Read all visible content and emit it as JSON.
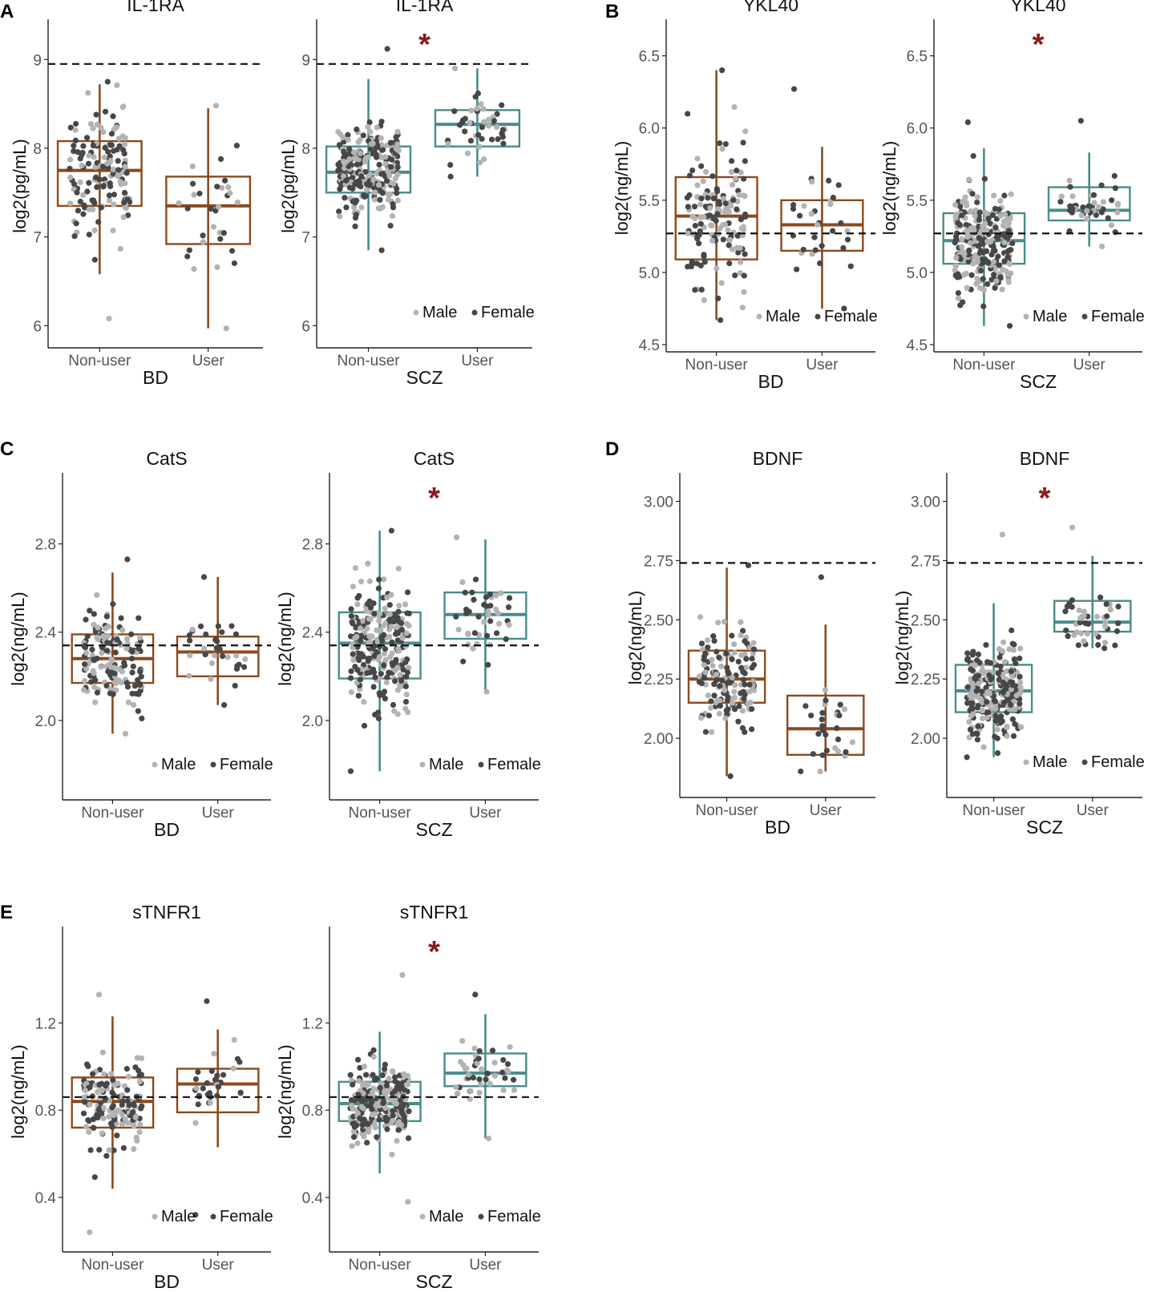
{
  "figure": {
    "panel_labels": [
      "A",
      "B",
      "C",
      "D",
      "E"
    ],
    "legend": {
      "male": "Male",
      "female": "Female"
    },
    "colors": {
      "bd": "#8B4A1E",
      "scz": "#4A8C8C",
      "male_dot": "#b3b3b3",
      "female_dot": "#474747",
      "star": "#8B1A1A",
      "refline": "#111111"
    },
    "significance_marker": "*"
  },
  "chart_data": [
    {
      "type": "box",
      "panel": "A",
      "title": "IL-1RA",
      "xlabel": "BD",
      "ylabel": "log2(pg/mL)",
      "categories": [
        "Non-user",
        "User"
      ],
      "ylim": [
        5.75,
        9.4
      ],
      "yticks": [
        6,
        7,
        8,
        9
      ],
      "ytick_labels": [
        "6",
        "7",
        "8",
        "9"
      ],
      "reference_line": 8.95,
      "significant": false,
      "legend": false,
      "color": "bd",
      "boxes": [
        {
          "q1": 7.35,
          "median": 7.75,
          "q3": 8.08,
          "wlo": 6.58,
          "whi": 8.72,
          "dmin": 6.08,
          "dmax": 8.75,
          "n": 150
        },
        {
          "q1": 6.92,
          "median": 7.35,
          "q3": 7.68,
          "wlo": 5.97,
          "whi": 8.45,
          "dmin": 5.97,
          "dmax": 8.48,
          "n": 32
        }
      ]
    },
    {
      "type": "box",
      "panel": "A",
      "title": "IL-1RA",
      "xlabel": "SCZ",
      "ylabel": "log2(pg/mL)",
      "categories": [
        "Non-user",
        "User"
      ],
      "ylim": [
        5.75,
        9.4
      ],
      "yticks": [
        6,
        7,
        8,
        9
      ],
      "ytick_labels": [
        "6",
        "7",
        "8",
        "9"
      ],
      "reference_line": 8.95,
      "significant": true,
      "legend": true,
      "color": "scz",
      "boxes": [
        {
          "q1": 7.5,
          "median": 7.73,
          "q3": 8.02,
          "wlo": 6.85,
          "whi": 8.78,
          "dmin": 6.85,
          "dmax": 9.12,
          "n": 260
        },
        {
          "q1": 8.02,
          "median": 8.27,
          "q3": 8.43,
          "wlo": 7.68,
          "whi": 8.9,
          "dmin": 7.68,
          "dmax": 8.9,
          "n": 45
        }
      ]
    },
    {
      "type": "box",
      "panel": "B",
      "title": "YKL40",
      "xlabel": "BD",
      "ylabel": "log2(ng/mL)",
      "categories": [
        "Non-user",
        "User"
      ],
      "ylim": [
        4.45,
        6.72
      ],
      "yticks": [
        4.5,
        5.0,
        5.5,
        6.0,
        6.5
      ],
      "ytick_labels": [
        "4.5",
        "5.0",
        "5.5",
        "6.0",
        "6.5"
      ],
      "reference_line": 5.27,
      "significant": false,
      "legend": true,
      "color": "bd",
      "boxes": [
        {
          "q1": 5.09,
          "median": 5.39,
          "q3": 5.66,
          "wlo": 4.67,
          "whi": 6.4,
          "dmin": 4.67,
          "dmax": 6.4,
          "n": 150
        },
        {
          "q1": 5.15,
          "median": 5.33,
          "q3": 5.5,
          "wlo": 4.75,
          "whi": 5.87,
          "dmin": 4.75,
          "dmax": 6.27,
          "n": 32
        }
      ]
    },
    {
      "type": "box",
      "panel": "B",
      "title": "YKL40",
      "xlabel": "SCZ",
      "ylabel": "log2(ng/mL)",
      "categories": [
        "Non-user",
        "User"
      ],
      "ylim": [
        4.45,
        6.72
      ],
      "yticks": [
        4.5,
        5.0,
        5.5,
        6.0,
        6.5
      ],
      "ytick_labels": [
        "4.5",
        "5.0",
        "5.5",
        "6.0",
        "6.5"
      ],
      "reference_line": 5.27,
      "significant": true,
      "legend": true,
      "color": "scz",
      "boxes": [
        {
          "q1": 5.06,
          "median": 5.22,
          "q3": 5.41,
          "wlo": 4.63,
          "whi": 5.86,
          "dmin": 4.63,
          "dmax": 6.04,
          "n": 260
        },
        {
          "q1": 5.36,
          "median": 5.43,
          "q3": 5.59,
          "wlo": 5.18,
          "whi": 5.83,
          "dmin": 5.18,
          "dmax": 6.05,
          "n": 45
        }
      ]
    },
    {
      "type": "box",
      "panel": "C",
      "title": "CatS",
      "xlabel": "BD",
      "ylabel": "log2(ng/mL)",
      "categories": [
        "Non-user",
        "User"
      ],
      "ylim": [
        1.64,
        3.1
      ],
      "yticks": [
        2.0,
        2.4,
        2.8
      ],
      "ytick_labels": [
        "2.0",
        "2.4",
        "2.8"
      ],
      "reference_line": 2.34,
      "significant": false,
      "legend": true,
      "color": "bd",
      "boxes": [
        {
          "q1": 2.17,
          "median": 2.28,
          "q3": 2.39,
          "wlo": 1.94,
          "whi": 2.67,
          "dmin": 1.94,
          "dmax": 2.73,
          "n": 150
        },
        {
          "q1": 2.2,
          "median": 2.31,
          "q3": 2.38,
          "wlo": 2.07,
          "whi": 2.65,
          "dmin": 2.07,
          "dmax": 2.65,
          "n": 32
        }
      ]
    },
    {
      "type": "box",
      "panel": "C",
      "title": "CatS",
      "xlabel": "SCZ",
      "ylabel": "log2(ng/mL)",
      "categories": [
        "Non-user",
        "User"
      ],
      "ylim": [
        1.64,
        3.1
      ],
      "yticks": [
        2.0,
        2.4,
        2.8
      ],
      "ytick_labels": [
        "2.0",
        "2.4",
        "2.8"
      ],
      "reference_line": 2.34,
      "significant": true,
      "legend": true,
      "color": "scz",
      "boxes": [
        {
          "q1": 2.19,
          "median": 2.35,
          "q3": 2.49,
          "wlo": 1.77,
          "whi": 2.86,
          "dmin": 1.77,
          "dmax": 2.86,
          "n": 260
        },
        {
          "q1": 2.37,
          "median": 2.48,
          "q3": 2.58,
          "wlo": 2.13,
          "whi": 2.82,
          "dmin": 2.13,
          "dmax": 2.83,
          "n": 45
        }
      ]
    },
    {
      "type": "box",
      "panel": "D",
      "title": "BDNF",
      "xlabel": "BD",
      "ylabel": "log2(ng/mL)",
      "categories": [
        "Non-user",
        "User"
      ],
      "ylim": [
        1.75,
        3.1
      ],
      "yticks": [
        2.0,
        2.25,
        2.5,
        2.75,
        3.0
      ],
      "ytick_labels": [
        "2.00",
        "2.25",
        "2.50",
        "2.75",
        "3.00"
      ],
      "reference_line": 2.74,
      "significant": false,
      "legend": false,
      "color": "bd",
      "boxes": [
        {
          "q1": 2.15,
          "median": 2.25,
          "q3": 2.37,
          "wlo": 1.84,
          "whi": 2.72,
          "dmin": 1.84,
          "dmax": 2.73,
          "n": 150
        },
        {
          "q1": 1.93,
          "median": 2.04,
          "q3": 2.18,
          "wlo": 1.86,
          "whi": 2.48,
          "dmin": 1.86,
          "dmax": 2.68,
          "n": 30
        }
      ]
    },
    {
      "type": "box",
      "panel": "D",
      "title": "BDNF",
      "xlabel": "SCZ",
      "ylabel": "log2(ng/mL)",
      "categories": [
        "Non-user",
        "User"
      ],
      "ylim": [
        1.75,
        3.1
      ],
      "yticks": [
        2.0,
        2.25,
        2.5,
        2.75,
        3.0
      ],
      "ytick_labels": [
        "2.00",
        "2.25",
        "2.50",
        "2.75",
        "3.00"
      ],
      "reference_line": 2.74,
      "significant": true,
      "legend": true,
      "color": "scz",
      "boxes": [
        {
          "q1": 2.11,
          "median": 2.2,
          "q3": 2.31,
          "wlo": 1.92,
          "whi": 2.57,
          "dmin": 1.92,
          "dmax": 2.86,
          "n": 260
        },
        {
          "q1": 2.45,
          "median": 2.49,
          "q3": 2.58,
          "wlo": 2.38,
          "whi": 2.77,
          "dmin": 2.38,
          "dmax": 2.89,
          "n": 45
        }
      ]
    },
    {
      "type": "box",
      "panel": "E",
      "title": "sTNFR1",
      "xlabel": "BD",
      "ylabel": "log2(ng/mL)",
      "categories": [
        "Non-user",
        "User"
      ],
      "ylim": [
        0.15,
        1.62
      ],
      "yticks": [
        0.4,
        0.8,
        1.2
      ],
      "ytick_labels": [
        "0.4",
        "0.8",
        "1.2"
      ],
      "reference_line": 0.86,
      "significant": false,
      "legend": true,
      "color": "bd",
      "boxes": [
        {
          "q1": 0.72,
          "median": 0.84,
          "q3": 0.95,
          "wlo": 0.44,
          "whi": 1.23,
          "dmin": 0.24,
          "dmax": 1.33,
          "n": 150
        },
        {
          "q1": 0.79,
          "median": 0.92,
          "q3": 0.99,
          "wlo": 0.63,
          "whi": 1.17,
          "dmin": 0.32,
          "dmax": 1.3,
          "n": 32
        }
      ]
    },
    {
      "type": "box",
      "panel": "E",
      "title": "sTNFR1",
      "xlabel": "SCZ",
      "ylabel": "log2(ng/mL)",
      "categories": [
        "Non-user",
        "User"
      ],
      "ylim": [
        0.15,
        1.62
      ],
      "yticks": [
        0.4,
        0.8,
        1.2
      ],
      "ytick_labels": [
        "0.4",
        "0.8",
        "1.2"
      ],
      "reference_line": 0.86,
      "significant": true,
      "legend": true,
      "color": "scz",
      "boxes": [
        {
          "q1": 0.75,
          "median": 0.83,
          "q3": 0.93,
          "wlo": 0.51,
          "whi": 1.16,
          "dmin": 0.38,
          "dmax": 1.42,
          "n": 260
        },
        {
          "q1": 0.91,
          "median": 0.97,
          "q3": 1.06,
          "wlo": 0.67,
          "whi": 1.24,
          "dmin": 0.67,
          "dmax": 1.33,
          "n": 45
        }
      ]
    }
  ]
}
